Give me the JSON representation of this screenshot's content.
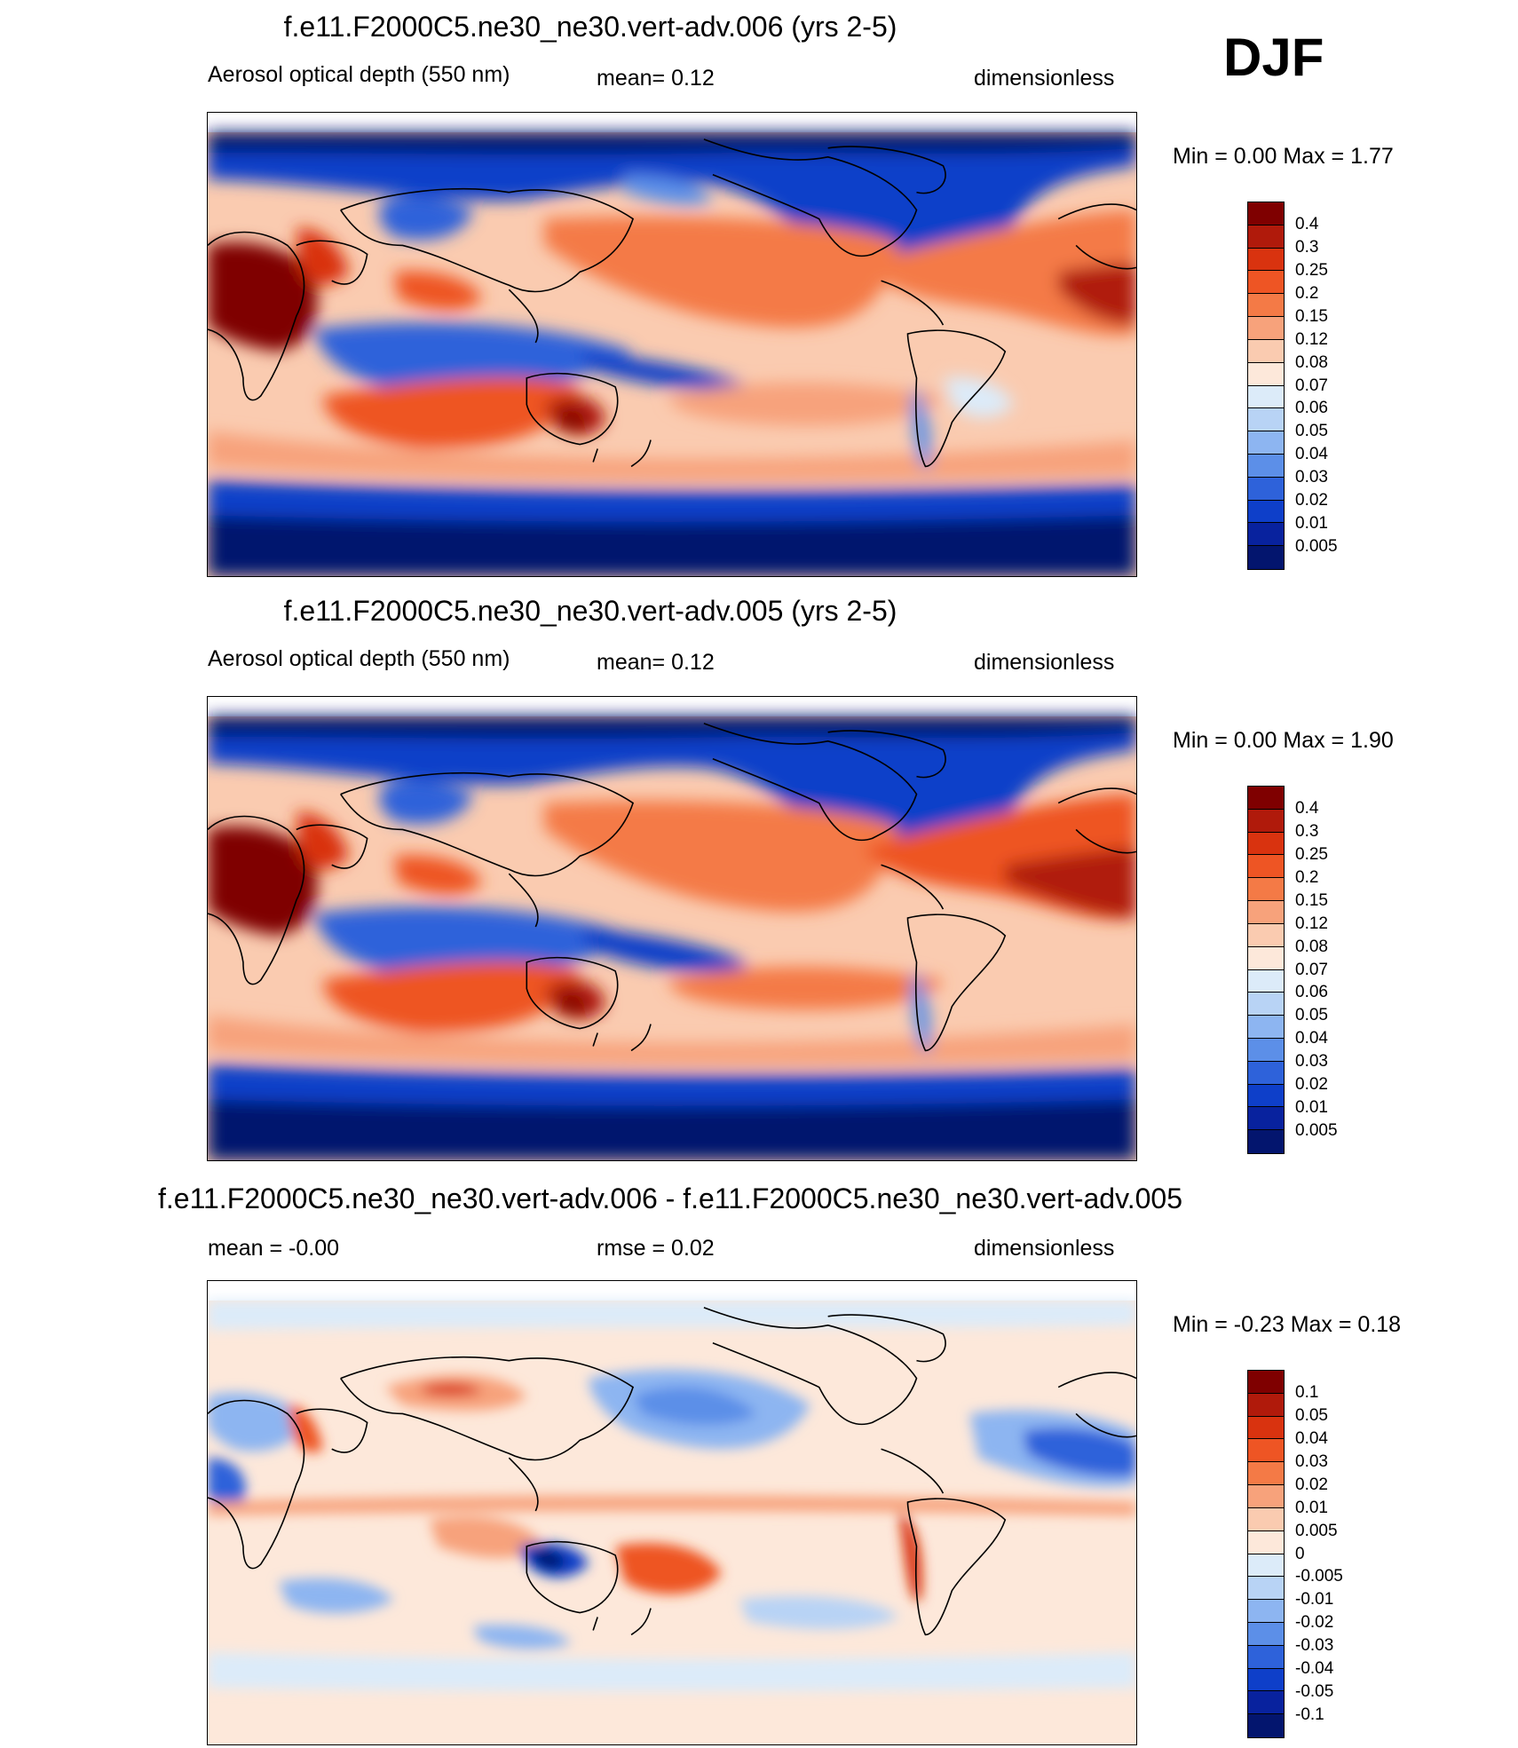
{
  "season": "DJF",
  "panels": [
    {
      "title": "f.e11.F2000C5.ne30_ne30.vert-adv.006 (yrs 2-5)",
      "left_label": "Aerosol optical depth (550 nm)",
      "center_label": "mean=   0.12",
      "right_label": "dimensionless",
      "minmax": "Min =    0.00 Max =    1.77",
      "colorbar_labels": [
        "0.4",
        "0.3",
        "0.25",
        "0.2",
        "0.15",
        "0.12",
        "0.08",
        "0.07",
        "0.06",
        "0.05",
        "0.04",
        "0.03",
        "0.02",
        "0.01",
        "0.005"
      ],
      "colorbar_colors": [
        "#7f0000",
        "#b01a0b",
        "#d9330f",
        "#ee5524",
        "#f47a46",
        "#f7a27b",
        "#facbb0",
        "#fde8da",
        "#dcebf9",
        "#b8d3f5",
        "#8db5f1",
        "#5c8fe8",
        "#2e62da",
        "#0e3fc9",
        "#08229e",
        "#03156e"
      ]
    },
    {
      "title": "f.e11.F2000C5.ne30_ne30.vert-adv.005 (yrs 2-5)",
      "left_label": "Aerosol optical depth (550 nm)",
      "center_label": "mean=   0.12",
      "right_label": "dimensionless",
      "minmax": "Min =    0.00 Max =    1.90",
      "colorbar_labels": [
        "0.4",
        "0.3",
        "0.25",
        "0.2",
        "0.15",
        "0.12",
        "0.08",
        "0.07",
        "0.06",
        "0.05",
        "0.04",
        "0.03",
        "0.02",
        "0.01",
        "0.005"
      ],
      "colorbar_colors": [
        "#7f0000",
        "#b01a0b",
        "#d9330f",
        "#ee5524",
        "#f47a46",
        "#f7a27b",
        "#facbb0",
        "#fde8da",
        "#dcebf9",
        "#b8d3f5",
        "#8db5f1",
        "#5c8fe8",
        "#2e62da",
        "#0e3fc9",
        "#08229e",
        "#03156e"
      ]
    },
    {
      "title": "f.e11.F2000C5.ne30_ne30.vert-adv.006 - f.e11.F2000C5.ne30_ne30.vert-adv.005",
      "left_label": "mean =  -0.00",
      "center_label": "rmse =   0.02",
      "right_label": "dimensionless",
      "minmax": "Min =  -0.23 Max =    0.18",
      "colorbar_labels": [
        "0.1",
        "0.05",
        "0.04",
        "0.03",
        "0.02",
        "0.01",
        "0.005",
        "0",
        "-0.005",
        "-0.01",
        "-0.02",
        "-0.03",
        "-0.04",
        "-0.05",
        "-0.1"
      ],
      "colorbar_colors": [
        "#7f0000",
        "#b01a0b",
        "#d9330f",
        "#ee5524",
        "#f47a46",
        "#f7a27b",
        "#facbb0",
        "#fde8da",
        "#dcebf9",
        "#b8d3f5",
        "#8db5f1",
        "#5c8fe8",
        "#2e62da",
        "#0e3fc9",
        "#08229e",
        "#03156e"
      ]
    }
  ]
}
